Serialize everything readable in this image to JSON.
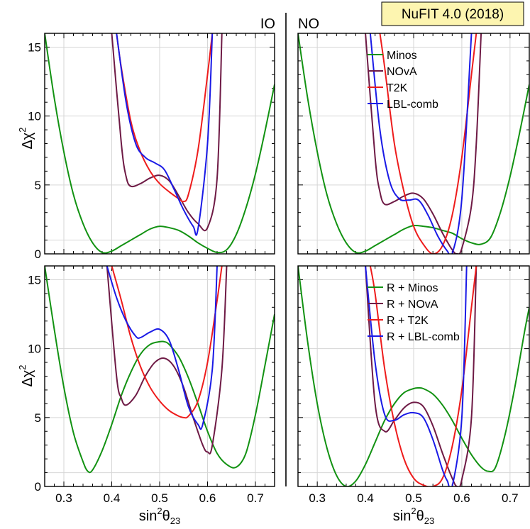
{
  "badge": "NuFIT 4.0 (2018)",
  "ordering_labels": {
    "io": "IO",
    "no": "NO"
  },
  "axes": {
    "xlabel_html": "sin²θ₂₃",
    "xlabel_main": "sin",
    "xlabel_sup": "2",
    "xlabel_theta": "θ",
    "xlabel_sub": "23",
    "ylabel_main": "Δχ",
    "ylabel_sup": "2",
    "xlim": [
      0.26,
      0.74
    ],
    "ylim": [
      0,
      16
    ],
    "xticks": [
      0.3,
      0.4,
      0.5,
      0.6,
      0.7
    ],
    "xtick_labels": [
      "0.3",
      "0.4",
      "0.5",
      "0.6",
      "0.7"
    ],
    "yticks": [
      0,
      5,
      10,
      15
    ],
    "ytick_labels": [
      "0",
      "5",
      "10",
      "15"
    ],
    "grid": true
  },
  "colors": {
    "minos": "#129212",
    "nova": "#6e1a45",
    "t2k": "#ee1c1c",
    "lbl": "#1a1ae6",
    "grid": "#d6d6d6",
    "badge_bg": "#fdf5b0"
  },
  "chart_data": [
    {
      "type": "line",
      "panel": "top-left",
      "ordering": "IO",
      "legend": null,
      "series": [
        {
          "name": "Minos",
          "color_key": "minos",
          "x": [
            0.26,
            0.28,
            0.3,
            0.32,
            0.34,
            0.36,
            0.38,
            0.4,
            0.42,
            0.44,
            0.46,
            0.48,
            0.5,
            0.52,
            0.54,
            0.56,
            0.58,
            0.6,
            0.62,
            0.64,
            0.66,
            0.68,
            0.7,
            0.72,
            0.74
          ],
          "y": [
            16.0,
            11.3,
            7.4,
            4.3,
            2.2,
            0.8,
            0.1,
            0.2,
            0.6,
            1.0,
            1.4,
            1.8,
            2.0,
            1.9,
            1.7,
            1.3,
            0.8,
            0.4,
            0.1,
            0.3,
            1.4,
            3.3,
            5.8,
            8.9,
            12.3
          ]
        },
        {
          "name": "NOvA",
          "color_key": "nova",
          "x": [
            0.4,
            0.42,
            0.43,
            0.44,
            0.46,
            0.48,
            0.5,
            0.52,
            0.54,
            0.56,
            0.58,
            0.6,
            0.62,
            0.63
          ],
          "y": [
            16.0,
            8.0,
            5.6,
            4.9,
            5.1,
            5.5,
            5.7,
            5.3,
            4.2,
            3.0,
            2.2,
            1.9,
            5.5,
            16.0
          ]
        },
        {
          "name": "T2K",
          "color_key": "t2k",
          "x": [
            0.41,
            0.42,
            0.44,
            0.46,
            0.48,
            0.5,
            0.52,
            0.54,
            0.55,
            0.56,
            0.58,
            0.6,
            0.61
          ],
          "y": [
            16.0,
            13.5,
            9.6,
            7.4,
            6.0,
            5.1,
            4.5,
            4.0,
            3.8,
            4.3,
            7.5,
            13.0,
            16.0
          ]
        },
        {
          "name": "LBL-comb",
          "color_key": "lbl",
          "x": [
            0.41,
            0.43,
            0.45,
            0.47,
            0.49,
            0.51,
            0.53,
            0.55,
            0.57,
            0.58,
            0.6,
            0.61
          ],
          "y": [
            16.0,
            11.0,
            8.0,
            7.0,
            6.6,
            6.1,
            4.7,
            3.2,
            2.0,
            1.8,
            8.0,
            16.0
          ]
        }
      ]
    },
    {
      "type": "line",
      "panel": "top-right",
      "ordering": "NO",
      "legend": "top-right",
      "series": [
        {
          "name": "Minos",
          "color_key": "minos",
          "x": [
            0.26,
            0.28,
            0.3,
            0.32,
            0.34,
            0.36,
            0.38,
            0.4,
            0.42,
            0.44,
            0.46,
            0.48,
            0.5,
            0.52,
            0.54,
            0.56,
            0.58,
            0.6,
            0.62,
            0.64,
            0.66,
            0.68,
            0.7,
            0.72,
            0.74
          ],
          "y": [
            16.0,
            11.3,
            7.4,
            4.3,
            2.2,
            0.8,
            0.1,
            0.2,
            0.6,
            1.0,
            1.4,
            1.8,
            2.05,
            2.0,
            1.9,
            1.7,
            1.5,
            1.1,
            0.8,
            0.7,
            1.2,
            3.0,
            5.6,
            8.8,
            12.3
          ]
        },
        {
          "name": "NOvA",
          "color_key": "nova",
          "x": [
            0.4,
            0.42,
            0.43,
            0.44,
            0.46,
            0.48,
            0.5,
            0.52,
            0.54,
            0.56,
            0.58,
            0.59,
            0.6,
            0.62,
            0.63,
            0.64
          ],
          "y": [
            16.0,
            7.0,
            4.5,
            3.6,
            3.8,
            4.2,
            4.4,
            4.0,
            2.9,
            1.5,
            0.3,
            0.0,
            0.4,
            3.5,
            8.0,
            16.0
          ]
        },
        {
          "name": "T2K",
          "color_key": "t2k",
          "x": [
            0.43,
            0.44,
            0.46,
            0.48,
            0.5,
            0.52,
            0.54,
            0.56,
            0.58,
            0.6,
            0.62,
            0.63
          ],
          "y": [
            16.0,
            13.5,
            8.0,
            4.5,
            2.0,
            0.7,
            0.0,
            0.6,
            2.8,
            7.0,
            13.0,
            16.0
          ]
        },
        {
          "name": "LBL-comb",
          "color_key": "lbl",
          "x": [
            0.41,
            0.43,
            0.45,
            0.47,
            0.49,
            0.51,
            0.53,
            0.55,
            0.57,
            0.58,
            0.6,
            0.62
          ],
          "y": [
            16.0,
            9.0,
            5.3,
            4.0,
            3.9,
            3.9,
            2.8,
            1.3,
            0.2,
            0.0,
            4.0,
            16.0
          ]
        }
      ]
    },
    {
      "type": "line",
      "panel": "bottom-left",
      "ordering": "IO",
      "legend": null,
      "series": [
        {
          "name": "R + Minos",
          "color_key": "minos",
          "x": [
            0.26,
            0.28,
            0.3,
            0.32,
            0.34,
            0.35,
            0.36,
            0.38,
            0.4,
            0.42,
            0.44,
            0.46,
            0.48,
            0.5,
            0.51,
            0.52,
            0.54,
            0.56,
            0.58,
            0.6,
            0.62,
            0.64,
            0.66,
            0.68,
            0.7,
            0.72,
            0.74
          ],
          "y": [
            16.0,
            11.4,
            7.2,
            3.9,
            1.8,
            1.1,
            1.2,
            2.6,
            4.5,
            6.6,
            8.3,
            9.6,
            10.3,
            10.5,
            10.5,
            10.3,
            9.4,
            7.9,
            6.0,
            4.0,
            2.4,
            1.6,
            1.4,
            2.4,
            5.2,
            8.8,
            12.5
          ]
        },
        {
          "name": "R + NOvA",
          "color_key": "nova",
          "x": [
            0.39,
            0.41,
            0.42,
            0.43,
            0.45,
            0.47,
            0.49,
            0.51,
            0.53,
            0.55,
            0.57,
            0.59,
            0.6,
            0.61,
            0.63,
            0.64
          ],
          "y": [
            16.0,
            8.0,
            6.4,
            5.9,
            6.6,
            8.0,
            9.0,
            9.3,
            8.7,
            7.2,
            5.0,
            3.0,
            2.5,
            3.0,
            8.5,
            16.0
          ]
        },
        {
          "name": "R + T2K",
          "color_key": "t2k",
          "x": [
            0.4,
            0.42,
            0.44,
            0.46,
            0.48,
            0.5,
            0.52,
            0.54,
            0.55,
            0.56,
            0.58,
            0.6,
            0.62,
            0.63
          ],
          "y": [
            16.0,
            13.5,
            10.8,
            8.7,
            7.2,
            6.2,
            5.5,
            5.1,
            5.0,
            5.1,
            6.2,
            9.0,
            13.5,
            16.0
          ]
        },
        {
          "name": "R + LBL-comb",
          "color_key": "lbl",
          "x": [
            0.39,
            0.41,
            0.43,
            0.45,
            0.46,
            0.48,
            0.5,
            0.52,
            0.54,
            0.56,
            0.58,
            0.59,
            0.61,
            0.62
          ],
          "y": [
            16.0,
            13.7,
            12.0,
            10.9,
            10.8,
            11.2,
            11.4,
            10.6,
            8.4,
            5.8,
            4.5,
            4.5,
            8.5,
            16.0
          ]
        }
      ]
    },
    {
      "type": "line",
      "panel": "bottom-right",
      "ordering": "NO",
      "legend": "top-right",
      "series": [
        {
          "name": "R + Minos",
          "color_key": "minos",
          "x": [
            0.26,
            0.28,
            0.3,
            0.32,
            0.34,
            0.36,
            0.38,
            0.4,
            0.42,
            0.44,
            0.46,
            0.48,
            0.5,
            0.51,
            0.52,
            0.54,
            0.56,
            0.58,
            0.6,
            0.62,
            0.64,
            0.655,
            0.67,
            0.69,
            0.71,
            0.73,
            0.74
          ],
          "y": [
            16.0,
            10.5,
            6.0,
            2.8,
            0.8,
            0.0,
            0.4,
            1.6,
            3.2,
            4.8,
            6.0,
            6.8,
            7.1,
            7.15,
            7.1,
            6.7,
            5.9,
            4.8,
            3.5,
            2.3,
            1.4,
            1.1,
            1.4,
            3.8,
            7.2,
            11.2,
            13.0
          ]
        },
        {
          "name": "R + NOvA",
          "color_key": "nova",
          "x": [
            0.4,
            0.42,
            0.44,
            0.46,
            0.48,
            0.5,
            0.52,
            0.54,
            0.56,
            0.58,
            0.59,
            0.6,
            0.62,
            0.63
          ],
          "y": [
            16.0,
            6.0,
            4.0,
            4.8,
            5.7,
            6.1,
            5.8,
            4.4,
            2.4,
            0.6,
            0.0,
            0.5,
            5.0,
            16.0
          ]
        },
        {
          "name": "R + T2K",
          "color_key": "t2k",
          "x": [
            0.41,
            0.42,
            0.44,
            0.46,
            0.48,
            0.5,
            0.52,
            0.54,
            0.56,
            0.58,
            0.6,
            0.62,
            0.63
          ],
          "y": [
            16.0,
            14.0,
            8.5,
            4.6,
            2.0,
            0.6,
            0.1,
            0.0,
            0.6,
            2.9,
            7.0,
            13.0,
            16.0
          ]
        },
        {
          "name": "R + LBL-comb",
          "color_key": "lbl",
          "x": [
            0.4,
            0.42,
            0.44,
            0.46,
            0.48,
            0.5,
            0.52,
            0.54,
            0.56,
            0.57,
            0.58,
            0.6,
            0.61
          ],
          "y": [
            16.0,
            9.0,
            5.2,
            4.8,
            5.2,
            5.35,
            5.0,
            3.4,
            1.2,
            0.4,
            0.0,
            5.0,
            16.0
          ]
        }
      ]
    }
  ]
}
